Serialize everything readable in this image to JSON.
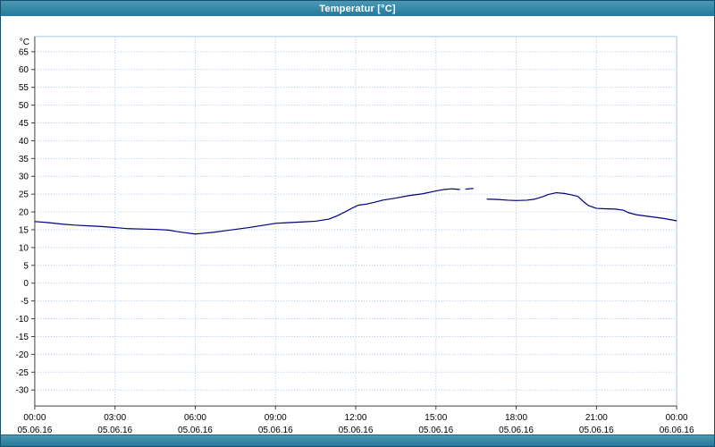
{
  "window": {
    "title": "Temperatur [°C]"
  },
  "chart_data": {
    "type": "line",
    "title": "Temperatur [°C]",
    "ylabel": "°C",
    "xlabel": "",
    "ylim": [
      -34.5,
      69.25
    ],
    "xlim": [
      0,
      24
    ],
    "grid": true,
    "legend": "none",
    "y_ticks": [
      65,
      60,
      55,
      50,
      45,
      40,
      35,
      30,
      25,
      20,
      15,
      10,
      5,
      0,
      -5,
      -10,
      -15,
      -20,
      -25,
      -30
    ],
    "x_ticks": [
      {
        "hour": 0,
        "label": "00:00",
        "date": "05.06.16"
      },
      {
        "hour": 3,
        "label": "03:00",
        "date": "05.06.16"
      },
      {
        "hour": 6,
        "label": "06:00",
        "date": "05.06.16"
      },
      {
        "hour": 9,
        "label": "09:00",
        "date": "05.06.16"
      },
      {
        "hour": 12,
        "label": "12:00",
        "date": "05.06.16"
      },
      {
        "hour": 15,
        "label": "15:00",
        "date": "05.06.16"
      },
      {
        "hour": 18,
        "label": "18:00",
        "date": "05.06.16"
      },
      {
        "hour": 21,
        "label": "21:00",
        "date": "05.06.16"
      },
      {
        "hour": 24,
        "label": "00:00",
        "date": "06.06.16"
      }
    ],
    "colors": {
      "line": "#00007f",
      "grid": "#a9c6e4",
      "axis": "#404040",
      "text": "#000000",
      "titlebar": "#2f7f9f",
      "plot_bg": "#ffffff"
    },
    "series": [
      {
        "name": "Temperatur",
        "color": "#00007f",
        "segments": [
          [
            [
              0,
              17.3
            ],
            [
              0.5,
              17.0
            ],
            [
              1,
              16.6
            ],
            [
              1.5,
              16.3
            ],
            [
              2,
              16.1
            ],
            [
              2.5,
              15.9
            ],
            [
              3,
              15.6
            ],
            [
              3.5,
              15.3
            ],
            [
              4,
              15.2
            ],
            [
              4.5,
              15.1
            ],
            [
              5,
              14.9
            ],
            [
              5.3,
              14.5
            ],
            [
              5.6,
              14.2
            ],
            [
              6,
              13.8
            ],
            [
              6.3,
              14.0
            ],
            [
              6.7,
              14.3
            ],
            [
              7,
              14.6
            ],
            [
              7.5,
              15.1
            ],
            [
              8,
              15.6
            ],
            [
              8.5,
              16.2
            ],
            [
              9,
              16.8
            ],
            [
              9.5,
              17.0
            ],
            [
              10,
              17.2
            ],
            [
              10.5,
              17.4
            ],
            [
              11,
              18.0
            ],
            [
              11.3,
              18.9
            ],
            [
              11.6,
              20.0
            ],
            [
              11.9,
              21.2
            ],
            [
              12.1,
              21.9
            ],
            [
              12.4,
              22.2
            ],
            [
              12.7,
              22.7
            ],
            [
              13,
              23.3
            ],
            [
              13.5,
              23.9
            ],
            [
              14,
              24.6
            ],
            [
              14.5,
              25.1
            ],
            [
              15,
              25.9
            ],
            [
              15.3,
              26.3
            ],
            [
              15.6,
              26.5
            ],
            [
              15.9,
              26.3
            ]
          ],
          [
            [
              16.1,
              26.4
            ],
            [
              16.4,
              26.6
            ]
          ],
          [
            [
              16.9,
              23.6
            ],
            [
              17.3,
              23.5
            ],
            [
              17.7,
              23.3
            ],
            [
              18,
              23.2
            ],
            [
              18.4,
              23.3
            ],
            [
              18.7,
              23.6
            ],
            [
              19,
              24.3
            ],
            [
              19.2,
              24.9
            ],
            [
              19.5,
              25.4
            ],
            [
              19.8,
              25.2
            ],
            [
              20,
              24.9
            ],
            [
              20.3,
              24.4
            ],
            [
              20.5,
              23.0
            ],
            [
              20.7,
              21.8
            ],
            [
              21,
              21.0
            ],
            [
              21.3,
              20.9
            ],
            [
              21.7,
              20.8
            ],
            [
              22,
              20.5
            ],
            [
              22.2,
              19.8
            ],
            [
              22.5,
              19.2
            ],
            [
              23,
              18.7
            ],
            [
              23.5,
              18.2
            ],
            [
              24,
              17.5
            ]
          ]
        ]
      }
    ]
  }
}
